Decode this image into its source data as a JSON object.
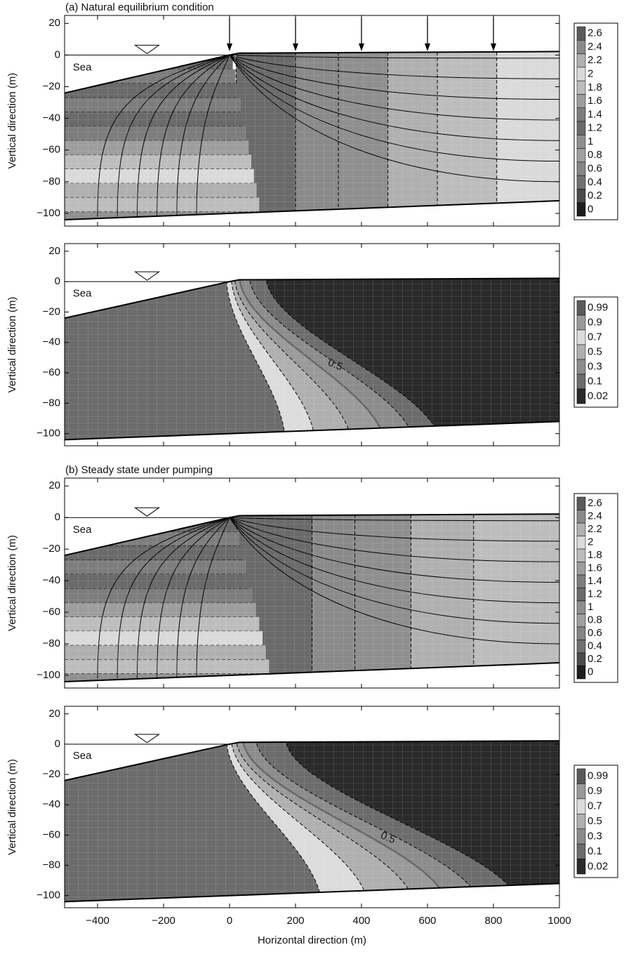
{
  "chart_data": [
    {
      "type": "head",
      "title": "(a) Natural equilibrium condition",
      "ylabel": "Vertical direction (m)",
      "annotation": "Sea",
      "xlim": [
        -500,
        1000
      ],
      "ylim": [
        -108,
        25
      ],
      "yticks": [
        20,
        0,
        {
          "value": -20,
          "label": "−20"
        },
        {
          "value": -40,
          "label": "−40"
        },
        {
          "value": -60,
          "label": "−60"
        },
        {
          "value": -80,
          "label": "−80"
        },
        {
          "value": -100,
          "label": "−100"
        }
      ],
      "legend": {
        "levels": [
          2.6,
          2.4,
          2.2,
          2,
          1.8,
          1.6,
          1.4,
          1.2,
          1,
          0.8,
          0.6,
          0.4,
          0.2,
          0
        ],
        "colors": [
          "#5a5a5a",
          "#8a8a8a",
          "#b0b0b0",
          "#dadada",
          "#bdbdbd",
          "#9d9d9d",
          "#7d7d7d",
          "#6a6a6a",
          "#8f8f8f",
          "#a0a0a0",
          "#858585",
          "#707070",
          "#4a4a4a",
          "#1e1e1e"
        ]
      }
    },
    {
      "type": "concentration",
      "ylabel": "Vertical direction (m)",
      "annotation": "Sea",
      "contour_label": 0.5,
      "xlim": [
        -500,
        1000
      ],
      "ylim": [
        -108,
        25
      ],
      "yticks": [
        20,
        0,
        {
          "value": -20,
          "label": "−20"
        },
        {
          "value": -40,
          "label": "−40"
        },
        {
          "value": -60,
          "label": "−60"
        },
        {
          "value": -80,
          "label": "−80"
        },
        {
          "value": -100,
          "label": "−100"
        }
      ],
      "legend": {
        "levels": [
          0.99,
          0.9,
          0.7,
          0.5,
          0.3,
          0.1,
          0.02
        ],
        "colors": [
          "#5a5a5a",
          "#9a9a9a",
          "#dcdcdc",
          "#b0b0b0",
          "#8c8c8c",
          "#6c6c6c",
          "#2a2a2a"
        ]
      }
    },
    {
      "type": "head",
      "title": "(b) Steady state under pumping",
      "ylabel": "Vertical direction (m)",
      "annotation": "Sea",
      "xlim": [
        -500,
        1000
      ],
      "ylim": [
        -108,
        25
      ],
      "yticks": [
        20,
        0,
        {
          "value": -20,
          "label": "−20"
        },
        {
          "value": -40,
          "label": "−40"
        },
        {
          "value": -60,
          "label": "−60"
        },
        {
          "value": -80,
          "label": "−80"
        },
        {
          "value": -100,
          "label": "−100"
        }
      ],
      "legend": {
        "levels": [
          2.6,
          2.4,
          2.2,
          2,
          1.8,
          1.6,
          1.4,
          1.2,
          1,
          0.8,
          0.6,
          0.4,
          0.2,
          0
        ],
        "colors": [
          "#5a5a5a",
          "#8a8a8a",
          "#b0b0b0",
          "#dadada",
          "#bdbdbd",
          "#9d9d9d",
          "#7d7d7d",
          "#6a6a6a",
          "#8f8f8f",
          "#a0a0a0",
          "#858585",
          "#707070",
          "#4a4a4a",
          "#1e1e1e"
        ]
      }
    },
    {
      "type": "concentration",
      "ylabel": "Vertical direction (m)",
      "xlabel": "Horizontal direction (m)",
      "annotation": "Sea",
      "contour_label": 0.5,
      "xlim": [
        -500,
        1000
      ],
      "ylim": [
        -108,
        25
      ],
      "xticks": [
        {
          "value": -400,
          "label": "−400"
        },
        {
          "value": -200,
          "label": "−200"
        },
        0,
        200,
        400,
        600,
        800,
        1000
      ],
      "yticks": [
        20,
        0,
        {
          "value": -20,
          "label": "−20"
        },
        {
          "value": -40,
          "label": "−40"
        },
        {
          "value": -60,
          "label": "−60"
        },
        {
          "value": -80,
          "label": "−80"
        },
        {
          "value": -100,
          "label": "−100"
        }
      ],
      "legend": {
        "levels": [
          0.99,
          0.9,
          0.7,
          0.5,
          0.3,
          0.1,
          0.02
        ],
        "colors": [
          "#5a5a5a",
          "#9a9a9a",
          "#dcdcdc",
          "#b0b0b0",
          "#8c8c8c",
          "#6c6c6c",
          "#2a2a2a"
        ]
      }
    }
  ]
}
